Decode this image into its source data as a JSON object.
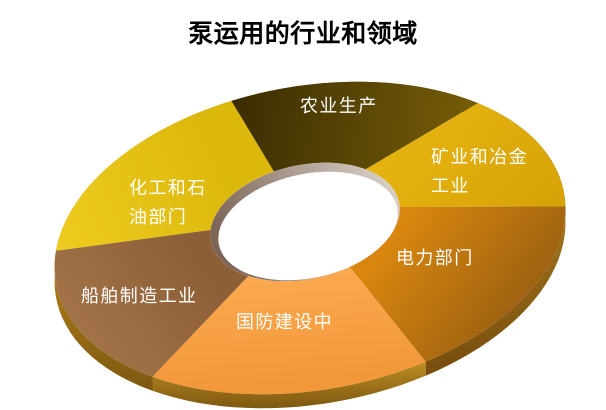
{
  "title": "泵运用的行业和领域",
  "title_color": "#000000",
  "background_color": "#ffffff",
  "label_text_color": "#ffffff",
  "chart_data": {
    "type": "pie",
    "subtype": "3d-donut",
    "title": "泵运用的行业和领域",
    "values_shown": false,
    "legend_position": "labels-on-slices",
    "segments": [
      {
        "id": "agriculture",
        "label": "农业生产",
        "label_display": "农业生产",
        "approx_share_pct": 16.4,
        "start_angle": 258,
        "end_angle": 317,
        "color_from": "#3c2e02",
        "color_to": "#755c08",
        "side_from": "#4a3803",
        "side_to": "#3a2c02"
      },
      {
        "id": "mining-metallurgy",
        "label": "矿业和冶金工业",
        "label_display": "矿业和冶金\n工业",
        "approx_share_pct": 13.3,
        "start_angle": 317,
        "end_angle": 365,
        "color_from": "#e5b310",
        "color_to": "#d49f05",
        "side_from": "#6f4a12",
        "side_to": "#5e3f0c"
      },
      {
        "id": "power",
        "label": "电力部门",
        "label_display": "电力部门",
        "approx_share_pct": 17.8,
        "start_angle": 5,
        "end_angle": 69,
        "color_from": "#d8860f",
        "color_to": "#8a5510",
        "side_from": "#a3761c",
        "side_to": "#774c0e"
      },
      {
        "id": "national-defense",
        "label": "国防建设中",
        "label_display": "国防建设中",
        "approx_share_pct": 18.1,
        "start_angle": 69,
        "end_angle": 134,
        "color_from": "#fba84e",
        "color_to": "#f2973a",
        "side_from": "#bd8d24",
        "side_to": "#7d5810"
      },
      {
        "id": "shipbuilding",
        "label": "船舶制造工业",
        "label_display": "船舶制造工业",
        "approx_share_pct": 16.1,
        "start_angle": 134,
        "end_angle": 192,
        "color_from": "#8d5f36",
        "color_to": "#a5744a",
        "side_from": "#b5831c",
        "side_to": "#7d5810"
      },
      {
        "id": "chemical-petroleum",
        "label": "化工和石油部门",
        "label_display": "化工和石\n油部门",
        "approx_share_pct": 18.3,
        "start_angle": 192,
        "end_angle": 258,
        "color_from": "#dcb80c",
        "color_to": "#eecb1f",
        "side_from": "#b89a14",
        "side_to": "#8f7410"
      }
    ],
    "hole": {
      "fill": "#ffffff",
      "wall_from": "#7c6456",
      "wall_to": "#dbd3cb"
    }
  }
}
